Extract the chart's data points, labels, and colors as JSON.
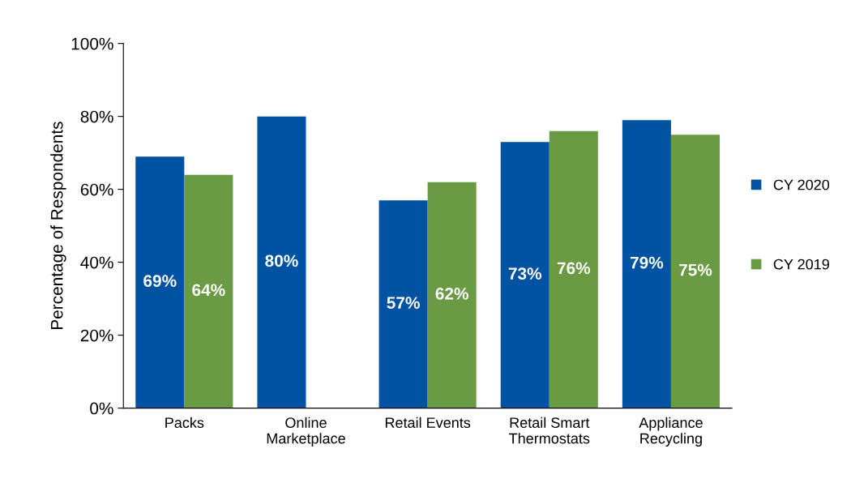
{
  "chart_data": {
    "type": "bar",
    "ylabel": "Percentage of Respondents",
    "categories": [
      "Packs",
      "Online\nMarketplace",
      "Retail Events",
      "Retail Smart\nThermostats",
      "Appliance\nRecycling"
    ],
    "series": [
      {
        "name": "CY 2020",
        "color": "#0052a3",
        "values": [
          69,
          80,
          57,
          73,
          79
        ],
        "value_labels": [
          "69%",
          "80%",
          "57%",
          "73%",
          "79%"
        ]
      },
      {
        "name": "CY 2019",
        "color": "#6a9a44",
        "values": [
          64,
          null,
          62,
          76,
          75
        ],
        "value_labels": [
          "64%",
          null,
          "62%",
          "76%",
          "75%"
        ]
      }
    ],
    "ylim": [
      0,
      100
    ],
    "yticks": [
      {
        "value": 0,
        "label": "0%"
      },
      {
        "value": 20,
        "label": "20%"
      },
      {
        "value": 40,
        "label": "40%"
      },
      {
        "value": 60,
        "label": "60%"
      },
      {
        "value": 80,
        "label": "80%"
      },
      {
        "value": 100,
        "label": "100%"
      }
    ],
    "grid": false,
    "legend": "right"
  }
}
